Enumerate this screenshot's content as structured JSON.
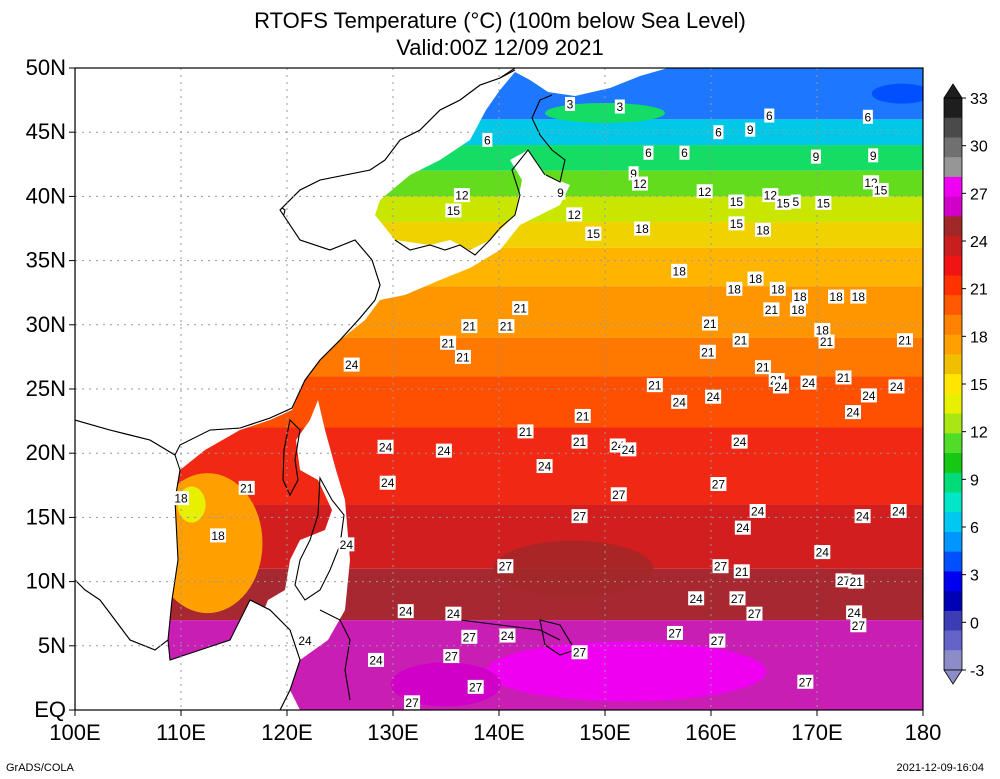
{
  "title": {
    "line1": "RTOFS Temperature (°C) (100m below Sea Level)",
    "line2": "Valid:00Z 12/09 2021"
  },
  "axes": {
    "lat_labels": [
      "50N",
      "45N",
      "40N",
      "35N",
      "30N",
      "25N",
      "20N",
      "15N",
      "10N",
      "5N",
      "EQ"
    ],
    "lat_values": [
      50,
      45,
      40,
      35,
      30,
      25,
      20,
      15,
      10,
      5,
      0
    ],
    "lon_labels": [
      "100E",
      "110E",
      "120E",
      "130E",
      "140E",
      "150E",
      "160E",
      "170E",
      "180"
    ],
    "lon_values": [
      100,
      110,
      120,
      130,
      140,
      150,
      160,
      170,
      180
    ],
    "lon_range": [
      100,
      180
    ],
    "lat_range": [
      0,
      50
    ],
    "grid": true
  },
  "colorbar": {
    "labels": [
      "33",
      "30",
      "27",
      "24",
      "21",
      "18",
      "15",
      "12",
      "9",
      "6",
      "3",
      "0",
      "-3"
    ],
    "label_values": [
      33,
      30,
      27,
      24,
      21,
      18,
      15,
      12,
      9,
      6,
      3,
      0,
      -3
    ],
    "colors": [
      "#1e1e1e",
      "#4a4a4a",
      "#707070",
      "#969696",
      "#f000f0",
      "#d000c8",
      "#a02828",
      "#c81e1e",
      "#f01414",
      "#ff3200",
      "#ff5a00",
      "#ff8200",
      "#ffa000",
      "#f0c000",
      "#ffe600",
      "#e6f000",
      "#aae614",
      "#50dc28",
      "#14c814",
      "#00dc78",
      "#00e6c8",
      "#00c8f0",
      "#0096ff",
      "#0050ff",
      "#0000f0",
      "#0000b4",
      "#3c3cb4",
      "#6464c8",
      "#8c8cc8"
    ]
  },
  "contour_labels": [
    {
      "t": "3",
      "lon": 146.7,
      "lat": 47.2
    },
    {
      "t": "3",
      "lon": 151.4,
      "lat": 47
    },
    {
      "t": "6",
      "lon": 138.9,
      "lat": 44.4
    },
    {
      "t": "6",
      "lon": 154.1,
      "lat": 43.4
    },
    {
      "t": "6",
      "lon": 157.5,
      "lat": 43.4
    },
    {
      "t": "6",
      "lon": 160.7,
      "lat": 45
    },
    {
      "t": "9",
      "lon": 163.7,
      "lat": 45.2
    },
    {
      "t": "6",
      "lon": 165.5,
      "lat": 46.3
    },
    {
      "t": "6",
      "lon": 174.8,
      "lat": 46.2
    },
    {
      "t": "9",
      "lon": 169.9,
      "lat": 43.1
    },
    {
      "t": "9",
      "lon": 175.3,
      "lat": 43.2
    },
    {
      "t": "12",
      "lon": 136.5,
      "lat": 40.1
    },
    {
      "t": "15",
      "lon": 135.7,
      "lat": 38.9
    },
    {
      "t": "9",
      "lon": 145.8,
      "lat": 40.3
    },
    {
      "t": "12",
      "lon": 147.1,
      "lat": 38.6
    },
    {
      "t": "9",
      "lon": 152.7,
      "lat": 41.8
    },
    {
      "t": "12",
      "lon": 153.3,
      "lat": 41
    },
    {
      "t": "12",
      "lon": 159.4,
      "lat": 40.4
    },
    {
      "t": "15",
      "lon": 162.4,
      "lat": 39.6
    },
    {
      "t": "12",
      "lon": 165.6,
      "lat": 40.1
    },
    {
      "t": "15",
      "lon": 166.8,
      "lat": 39.5
    },
    {
      "t": "5",
      "lon": 168,
      "lat": 39.6
    },
    {
      "t": "15",
      "lon": 170.6,
      "lat": 39.5
    },
    {
      "t": "12",
      "lon": 175.1,
      "lat": 41.1
    },
    {
      "t": "15",
      "lon": 176,
      "lat": 40.5
    },
    {
      "t": "15",
      "lon": 148.9,
      "lat": 37.1
    },
    {
      "t": "18",
      "lon": 153.5,
      "lat": 37.5
    },
    {
      "t": "15",
      "lon": 162.4,
      "lat": 37.9
    },
    {
      "t": "18",
      "lon": 164.9,
      "lat": 37.4
    },
    {
      "t": "18",
      "lon": 157,
      "lat": 34.2
    },
    {
      "t": "18",
      "lon": 164.2,
      "lat": 33.6
    },
    {
      "t": "18",
      "lon": 162.2,
      "lat": 32.8
    },
    {
      "t": "18",
      "lon": 166.3,
      "lat": 32.8
    },
    {
      "t": "18",
      "lon": 168.4,
      "lat": 32.2
    },
    {
      "t": "18",
      "lon": 171.8,
      "lat": 32.2
    },
    {
      "t": "18",
      "lon": 173.9,
      "lat": 32.2
    },
    {
      "t": "21",
      "lon": 142,
      "lat": 31.3
    },
    {
      "t": "21",
      "lon": 137.2,
      "lat": 29.9
    },
    {
      "t": "21",
      "lon": 140.7,
      "lat": 29.9
    },
    {
      "t": "21",
      "lon": 135.2,
      "lat": 28.6
    },
    {
      "t": "21",
      "lon": 136.6,
      "lat": 27.5
    },
    {
      "t": "24",
      "lon": 126.1,
      "lat": 26.9
    },
    {
      "t": "21",
      "lon": 159.9,
      "lat": 30.1
    },
    {
      "t": "21",
      "lon": 165.7,
      "lat": 31.2
    },
    {
      "t": "18",
      "lon": 168.2,
      "lat": 31.2
    },
    {
      "t": "18",
      "lon": 170.5,
      "lat": 29.6
    },
    {
      "t": "21",
      "lon": 162.8,
      "lat": 28.8
    },
    {
      "t": "21",
      "lon": 159.7,
      "lat": 27.9
    },
    {
      "t": "21",
      "lon": 170.9,
      "lat": 28.7
    },
    {
      "t": "21",
      "lon": 178.3,
      "lat": 28.8
    },
    {
      "t": "21",
      "lon": 164.9,
      "lat": 26.7
    },
    {
      "t": "21",
      "lon": 166.2,
      "lat": 25.7
    },
    {
      "t": "24",
      "lon": 166.6,
      "lat": 25.2
    },
    {
      "t": "24",
      "lon": 169.2,
      "lat": 25.5
    },
    {
      "t": "21",
      "lon": 172.5,
      "lat": 25.9
    },
    {
      "t": "24",
      "lon": 174.9,
      "lat": 24.5
    },
    {
      "t": "24",
      "lon": 177.5,
      "lat": 25.2
    },
    {
      "t": "21",
      "lon": 154.7,
      "lat": 25.3
    },
    {
      "t": "24",
      "lon": 157,
      "lat": 24
    },
    {
      "t": "24",
      "lon": 160.2,
      "lat": 24.4
    },
    {
      "t": "24",
      "lon": 173.4,
      "lat": 23.2
    },
    {
      "t": "21",
      "lon": 147.9,
      "lat": 22.9
    },
    {
      "t": "21",
      "lon": 142.5,
      "lat": 21.7
    },
    {
      "t": "21",
      "lon": 147.6,
      "lat": 20.9
    },
    {
      "t": "24",
      "lon": 151.2,
      "lat": 20.6
    },
    {
      "t": "24",
      "lon": 152.2,
      "lat": 20.3
    },
    {
      "t": "24",
      "lon": 162.7,
      "lat": 20.9
    },
    {
      "t": "24",
      "lon": 129.3,
      "lat": 20.5
    },
    {
      "t": "24",
      "lon": 134.8,
      "lat": 20.2
    },
    {
      "t": "24",
      "lon": 129.5,
      "lat": 17.7
    },
    {
      "t": "24",
      "lon": 144.3,
      "lat": 19
    },
    {
      "t": "21",
      "lon": 116.2,
      "lat": 17.3
    },
    {
      "t": "18",
      "lon": 110,
      "lat": 16.5
    },
    {
      "t": "27",
      "lon": 160.7,
      "lat": 17.6
    },
    {
      "t": "27",
      "lon": 151.3,
      "lat": 16.8
    },
    {
      "t": "27",
      "lon": 147.6,
      "lat": 15.1
    },
    {
      "t": "24",
      "lon": 164.4,
      "lat": 15.5
    },
    {
      "t": "24",
      "lon": 177.7,
      "lat": 15.5
    },
    {
      "t": "24",
      "lon": 174.3,
      "lat": 15.1
    },
    {
      "t": "24",
      "lon": 163,
      "lat": 14.2
    },
    {
      "t": "18",
      "lon": 113.5,
      "lat": 13.6
    },
    {
      "t": "24",
      "lon": 125.6,
      "lat": 12.9
    },
    {
      "t": "24",
      "lon": 170.5,
      "lat": 12.3
    },
    {
      "t": "27",
      "lon": 140.6,
      "lat": 11.2
    },
    {
      "t": "27",
      "lon": 160.9,
      "lat": 11.2
    },
    {
      "t": "21",
      "lon": 162.9,
      "lat": 10.8
    },
    {
      "t": "27",
      "lon": 172.5,
      "lat": 10.1
    },
    {
      "t": "21",
      "lon": 173.7,
      "lat": 10
    },
    {
      "t": "24",
      "lon": 131.2,
      "lat": 7.7
    },
    {
      "t": "24",
      "lon": 135.7,
      "lat": 7.5
    },
    {
      "t": "24",
      "lon": 158.6,
      "lat": 8.7
    },
    {
      "t": "27",
      "lon": 162.5,
      "lat": 8.7
    },
    {
      "t": "27",
      "lon": 164.1,
      "lat": 7.5
    },
    {
      "t": "24",
      "lon": 173.5,
      "lat": 7.6
    },
    {
      "t": "27",
      "lon": 173.9,
      "lat": 6.6
    },
    {
      "t": "27",
      "lon": 137.2,
      "lat": 5.7
    },
    {
      "t": "24",
      "lon": 140.8,
      "lat": 5.8
    },
    {
      "t": "27",
      "lon": 156.6,
      "lat": 6
    },
    {
      "t": "27",
      "lon": 160.6,
      "lat": 5.4
    },
    {
      "t": "24",
      "lon": 121.7,
      "lat": 5.4
    },
    {
      "t": "27",
      "lon": 135.5,
      "lat": 4.2
    },
    {
      "t": "27",
      "lon": 147.6,
      "lat": 4.5
    },
    {
      "t": "24",
      "lon": 128.4,
      "lat": 3.9
    },
    {
      "t": "27",
      "lon": 137.8,
      "lat": 1.8
    },
    {
      "t": "27",
      "lon": 168.9,
      "lat": 2.2
    },
    {
      "t": "27",
      "lon": 131.8,
      "lat": 0.6
    }
  ],
  "footer": {
    "left": "GrADS/COLA",
    "right": "2021-12-09-16:04"
  }
}
